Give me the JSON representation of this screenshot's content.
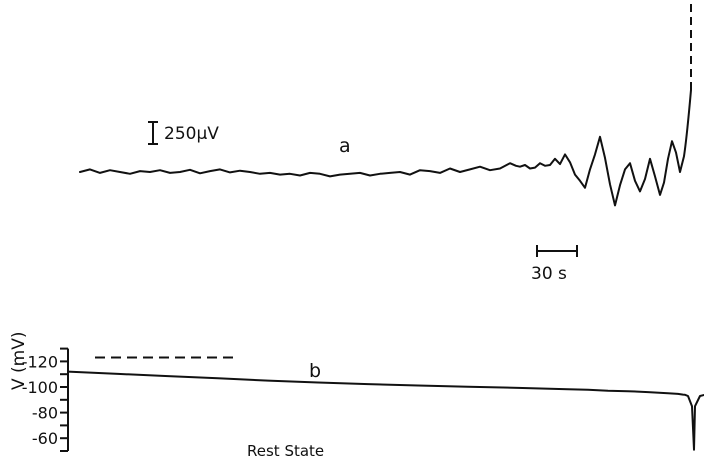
{
  "colors": {
    "ink": "#111111",
    "background": "#ffffff"
  },
  "chart_data": [
    {
      "type": "line",
      "panel_label": "a",
      "amplitude_scale_label": "250µV",
      "time_scale_label": "30 s",
      "series": [
        {
          "x": [
            0,
            10,
            20,
            30,
            40,
            50,
            60,
            70,
            80,
            90,
            100,
            110,
            120,
            130,
            140,
            150,
            160,
            170,
            180,
            190,
            200,
            210,
            220,
            230,
            240,
            250,
            260,
            270,
            280,
            290,
            300,
            310,
            320,
            330,
            340,
            350,
            360,
            370,
            380,
            390,
            400,
            410,
            420,
            430,
            436,
            440,
            445,
            450,
            455,
            460,
            465,
            470,
            475,
            480,
            485,
            490,
            495,
            500,
            505,
            510,
            515,
            520,
            525,
            530,
            535,
            540,
            545,
            550,
            555,
            560,
            565,
            570,
            575,
            580,
            584,
            588,
            592,
            596,
            600,
            604
          ],
          "values": [
            0,
            30,
            -10,
            20,
            0,
            -20,
            10,
            0,
            20,
            -10,
            0,
            25,
            -15,
            10,
            30,
            -5,
            15,
            0,
            -20,
            -10,
            -30,
            -20,
            -40,
            -10,
            -20,
            -50,
            -30,
            -20,
            -10,
            -40,
            -20,
            -10,
            0,
            -30,
            20,
            10,
            -10,
            40,
            0,
            30,
            60,
            20,
            40,
            100,
            70,
            60,
            80,
            40,
            50,
            100,
            70,
            80,
            150,
            90,
            200,
            110,
            -30,
            -100,
            -180,
            30,
            200,
            400,
            160,
            -140,
            -380,
            -150,
            30,
            100,
            -100,
            -220,
            -80,
            150,
            -50,
            -260,
            -120,
            150,
            350,
            220,
            0,
            180
          ]
        }
      ]
    },
    {
      "type": "line",
      "panel_label": "b",
      "ylabel": "V  (mV)",
      "yticks": [
        -60,
        -80,
        -100,
        -120
      ],
      "ylim": [
        -130,
        -50
      ],
      "reference_line": {
        "value": -123,
        "label": "Rest  State"
      },
      "series": [
        {
          "x": [
            0,
            50,
            100,
            150,
            200,
            250,
            300,
            350,
            400,
            450,
            500,
            520,
            540,
            560,
            580,
            600,
            610,
            615,
            617,
            620,
            624,
            626,
            627,
            632,
            640,
            650
          ],
          "values": [
            -112,
            -110.2,
            -108.5,
            -106.8,
            -105,
            -103.5,
            -102.3,
            -101.2,
            -100.2,
            -99.3,
            -98.3,
            -97.8,
            -97,
            -96.7,
            -96,
            -95.1,
            -94.6,
            -94.1,
            -93.9,
            -93,
            -85,
            -51,
            -85,
            -93,
            -94.5,
            -95
          ]
        }
      ]
    }
  ]
}
